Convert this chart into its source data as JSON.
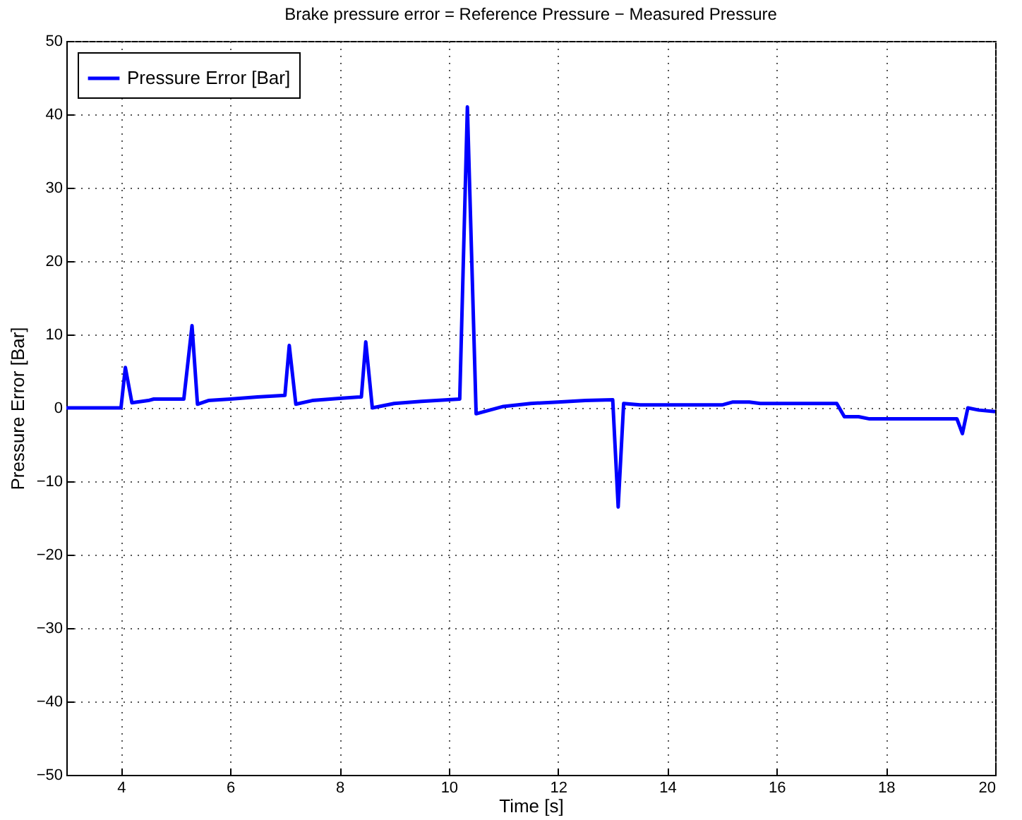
{
  "chart_data": {
    "type": "line",
    "title": "Brake pressure error = Reference Pressure − Measured Pressure",
    "xlabel": "Time [s]",
    "ylabel": "Pressure Error [Bar]",
    "x": [
      3,
      4.0,
      4.08,
      4.2,
      4.5,
      4.6,
      5.15,
      5.3,
      5.4,
      5.6,
      6.0,
      6.5,
      7.0,
      7.08,
      7.2,
      7.5,
      8.0,
      8.4,
      8.48,
      8.6,
      9.0,
      9.5,
      10.2,
      10.34,
      10.5,
      11.0,
      11.5,
      12.0,
      12.5,
      13.0,
      13.1,
      13.2,
      13.5,
      15.0,
      15.2,
      15.5,
      15.7,
      17.1,
      17.24,
      17.5,
      17.7,
      19.3,
      19.4,
      19.5,
      19.7,
      20
    ],
    "series": [
      {
        "name": "Pressure Error [Bar]",
        "color": "#0000ff",
        "values": [
          0,
          0,
          5.5,
          0.7,
          1.0,
          1.2,
          1.2,
          11.2,
          0.5,
          1.0,
          1.2,
          1.5,
          1.7,
          8.5,
          0.5,
          1.0,
          1.3,
          1.5,
          9,
          0,
          0.6,
          0.9,
          1.2,
          41,
          -0.8,
          0.2,
          0.6,
          0.8,
          1.0,
          1.1,
          -13.5,
          0.6,
          0.4,
          0.4,
          0.8,
          0.8,
          0.6,
          0.6,
          -1.2,
          -1.2,
          -1.5,
          -1.5,
          -3.5,
          0,
          -0.3,
          -0.5
        ]
      }
    ],
    "xlim": [
      3,
      20
    ],
    "xticks": [
      4,
      6,
      8,
      10,
      12,
      14,
      16,
      18,
      20
    ],
    "ylim": [
      -50,
      50
    ],
    "yticks": [
      -50,
      -40,
      -30,
      -20,
      -10,
      0,
      10,
      20,
      30,
      40,
      50
    ],
    "grid": true,
    "legend": "top left",
    "line_style": "solid",
    "marker": "none"
  }
}
